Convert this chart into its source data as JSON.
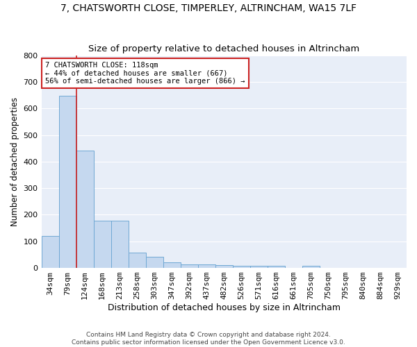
{
  "title": "7, CHATSWORTH CLOSE, TIMPERLEY, ALTRINCHAM, WA15 7LF",
  "subtitle": "Size of property relative to detached houses in Altrincham",
  "xlabel": "Distribution of detached houses by size in Altrincham",
  "ylabel": "Number of detached properties",
  "footer_line1": "Contains HM Land Registry data © Crown copyright and database right 2024.",
  "footer_line2": "Contains public sector information licensed under the Open Government Licence v3.0.",
  "bin_labels": [
    "34sqm",
    "79sqm",
    "124sqm",
    "168sqm",
    "213sqm",
    "258sqm",
    "303sqm",
    "347sqm",
    "392sqm",
    "437sqm",
    "482sqm",
    "526sqm",
    "571sqm",
    "616sqm",
    "661sqm",
    "705sqm",
    "750sqm",
    "795sqm",
    "840sqm",
    "884sqm",
    "929sqm"
  ],
  "bar_heights": [
    120,
    648,
    440,
    178,
    178,
    58,
    42,
    22,
    13,
    13,
    11,
    8,
    7,
    8,
    0,
    8,
    0,
    0,
    0,
    0,
    0
  ],
  "bar_color": "#c5d8ef",
  "bar_edge_color": "#6fa8d4",
  "property_label": "7 CHATSWORTH CLOSE: 118sqm",
  "annotation_line1": "← 44% of detached houses are smaller (667)",
  "annotation_line2": "56% of semi-detached houses are larger (866) →",
  "vline_color": "#cc2222",
  "annotation_box_color": "#cc2222",
  "ylim": [
    0,
    800
  ],
  "yticks": [
    0,
    100,
    200,
    300,
    400,
    500,
    600,
    700,
    800
  ],
  "background_color": "#e8eef8",
  "grid_color": "#ffffff",
  "title_fontsize": 10,
  "subtitle_fontsize": 9.5,
  "xlabel_fontsize": 9,
  "ylabel_fontsize": 8.5,
  "tick_fontsize": 8
}
